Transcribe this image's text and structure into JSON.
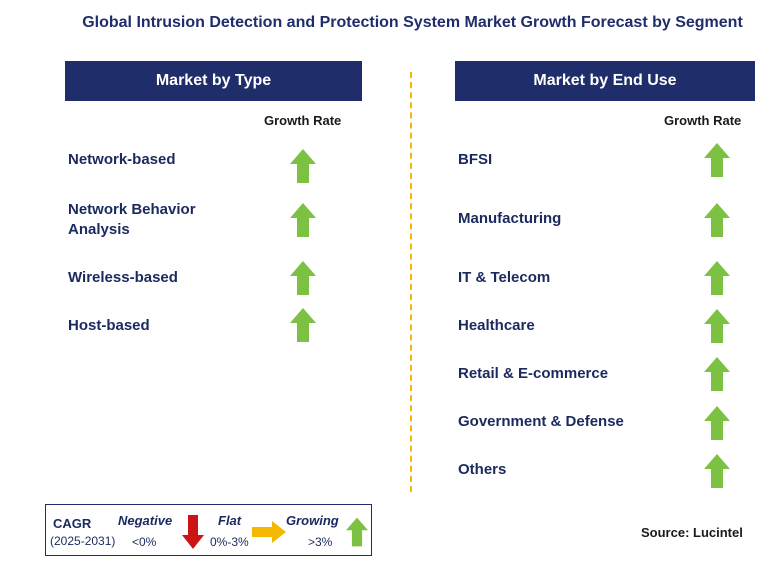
{
  "title": "Global Intrusion Detection and Protection System Market Growth Forecast by Segment",
  "left": {
    "header": "Market by Type",
    "column_label": "Growth Rate",
    "items": [
      {
        "line1": "Network-based",
        "line2": "",
        "trend": "growing"
      },
      {
        "line1": "Network Behavior",
        "line2": "Analysis",
        "trend": "growing"
      },
      {
        "line1": "Wireless-based",
        "line2": "",
        "trend": "growing"
      },
      {
        "line1": "Host-based",
        "line2": "",
        "trend": "growing"
      }
    ]
  },
  "right": {
    "header": "Market by End Use",
    "column_label": "Growth Rate",
    "items": [
      {
        "label": "BFSI",
        "trend": "growing"
      },
      {
        "label": "Manufacturing",
        "trend": "growing"
      },
      {
        "label": "IT & Telecom",
        "trend": "growing"
      },
      {
        "label": "Healthcare",
        "trend": "growing"
      },
      {
        "label": "Retail & E-commerce",
        "trend": "growing"
      },
      {
        "label": "Government & Defense",
        "trend": "growing"
      },
      {
        "label": "Others",
        "trend": "growing"
      }
    ]
  },
  "legend": {
    "cagr_label": "CAGR",
    "period": "(2025-2031)",
    "negative_label": "Negative",
    "negative_range": "<0%",
    "flat_label": "Flat",
    "flat_range": "0%-3%",
    "growing_label": "Growing",
    "growing_range": ">3%"
  },
  "source": "Source: Lucintel",
  "colors": {
    "navy": "#1f2d6b",
    "growing_arrow": "#7dc142",
    "negative_arrow": "#cc1414",
    "flat_arrow": "#f5b800",
    "divider": "#f5b800"
  }
}
